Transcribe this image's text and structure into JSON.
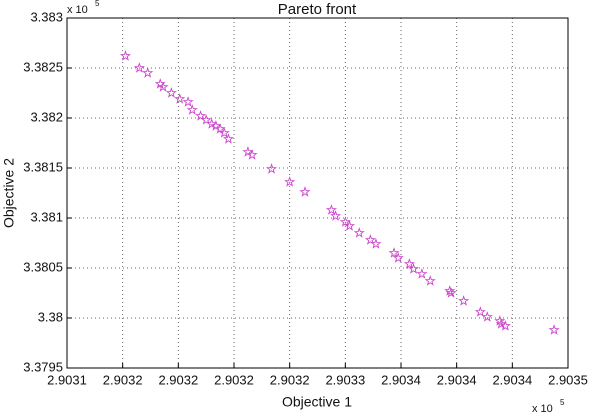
{
  "chart_data": {
    "type": "scatter",
    "title": "Pareto front",
    "x_label": "Objective 1",
    "y_label": "Objective 2",
    "x_multiplier": {
      "base": "x 10",
      "exponent": "5"
    },
    "y_multiplier": {
      "base": "x 10",
      "exponent": "5"
    },
    "marker": "star",
    "color": "#cc44cc",
    "grid": true,
    "xlim": [
      2.90312,
      2.90348
    ],
    "xticks": [
      {
        "value": 2.90312,
        "label": "2.9031"
      },
      {
        "value": 2.90316,
        "label": "2.9032"
      },
      {
        "value": 2.9032,
        "label": "2.9032"
      },
      {
        "value": 2.90324,
        "label": "2.9032"
      },
      {
        "value": 2.90328,
        "label": "2.9032"
      },
      {
        "value": 2.90332,
        "label": "2.9033"
      },
      {
        "value": 2.90336,
        "label": "2.9034"
      },
      {
        "value": 2.9034,
        "label": "2.9034"
      },
      {
        "value": 2.90344,
        "label": "2.9034"
      },
      {
        "value": 2.90348,
        "label": "2.9035"
      }
    ],
    "ylim": [
      3.3795,
      3.383
    ],
    "yticks": [
      3.3795,
      3.38,
      3.3805,
      3.381,
      3.3815,
      3.382,
      3.3825,
      3.383
    ],
    "x": [
      2.903162,
      2.903172,
      2.903178,
      2.903187,
      2.903189,
      2.903195,
      2.903201,
      2.903207,
      2.90321,
      2.903216,
      2.90322,
      2.903224,
      2.903227,
      2.90323,
      2.903233,
      2.903236,
      2.90325,
      2.903253,
      2.903267,
      2.90328,
      2.903291,
      2.90331,
      2.903313,
      2.90332,
      2.903323,
      2.90333,
      2.903338,
      2.903342,
      2.903355,
      2.903358,
      2.903366,
      2.903369,
      2.903375,
      2.903381,
      2.903395,
      2.903396,
      2.903405,
      2.903417,
      2.903422,
      2.903431,
      2.903432,
      2.903435,
      2.90347
    ],
    "values": [
      3.38262,
      3.3825,
      3.38245,
      3.38234,
      3.38231,
      3.38225,
      3.38219,
      3.38216,
      3.38208,
      3.38202,
      3.38198,
      3.38194,
      3.38192,
      3.38189,
      3.38185,
      3.38179,
      3.38166,
      3.38163,
      3.38149,
      3.38136,
      3.38126,
      3.38108,
      3.38102,
      3.38096,
      3.38092,
      3.38085,
      3.38078,
      3.38074,
      3.38065,
      3.3806,
      3.38054,
      3.38049,
      3.38044,
      3.38037,
      3.38027,
      3.38025,
      3.38017,
      3.38006,
      3.38001,
      3.37997,
      3.37994,
      3.37992,
      3.37988
    ]
  }
}
